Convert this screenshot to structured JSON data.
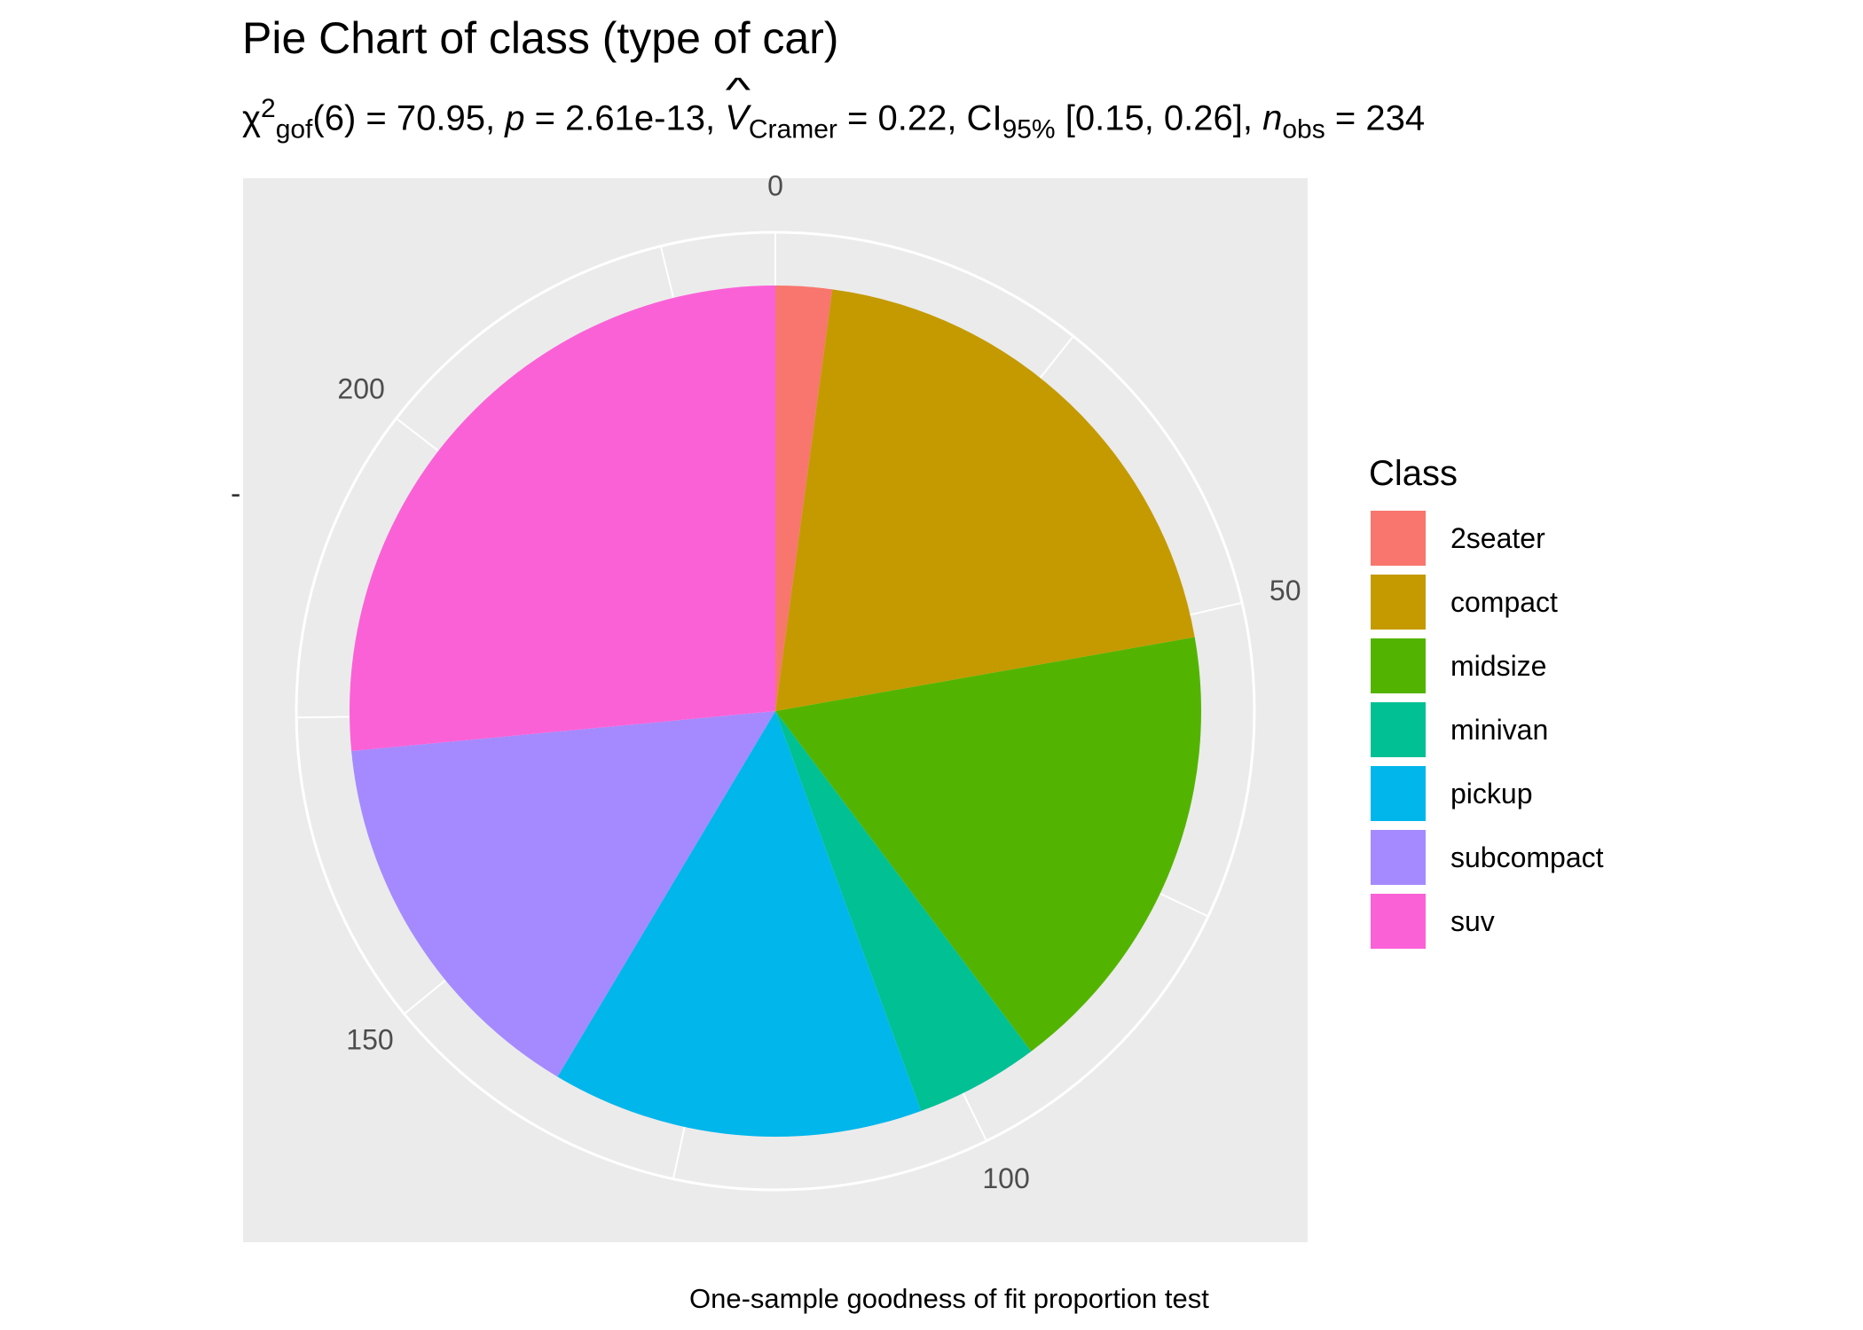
{
  "chart_data": {
    "type": "pie",
    "title": "Pie Chart of class (type of car)",
    "subtitle": {
      "chi": "χ",
      "chi_sup": "2",
      "chi_sub": "gof",
      "df": "(6) = 70.95, ",
      "p_label": "p",
      "p_value": " = 2.61e-13, ",
      "v_label": "V",
      "v_sub": "Cramer",
      "v_value": " = 0.22, CI",
      "ci_sub": "95%",
      "ci_value": " [0.15, 0.26], ",
      "n_label": "n",
      "n_sub": "obs",
      "n_value": " = 234"
    },
    "caption": "One-sample goodness of fit proportion test",
    "y_tick": "-",
    "legend_title": "Class",
    "legend_position": "right",
    "categories": [
      "2seater",
      "compact",
      "midsize",
      "minivan",
      "pickup",
      "subcompact",
      "suv"
    ],
    "values": [
      5,
      47,
      41,
      11,
      33,
      35,
      62
    ],
    "colors": [
      "#F8766D",
      "#C49A00",
      "#53B400",
      "#00C094",
      "#00B6EB",
      "#A58AFF",
      "#FB61D7"
    ],
    "panel_background": "#EBEBEB",
    "grid_color": "#FFFFFF",
    "radial_ticks": [
      0,
      50,
      100,
      150,
      200
    ],
    "radial_tick_labels": [
      "0",
      "50",
      "100",
      "150",
      "200"
    ],
    "radial_minor_ticks": [
      25,
      75,
      125,
      175,
      225
    ],
    "total": 234
  }
}
